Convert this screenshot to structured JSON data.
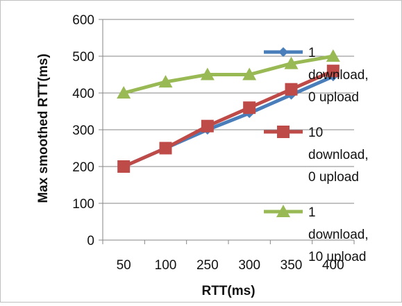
{
  "chart_data": {
    "type": "line",
    "title": "",
    "xlabel": "RTT(ms)",
    "ylabel": "Max smoothed RTT(ms)",
    "categories": [
      "50",
      "100",
      "250",
      "300",
      "350",
      "400"
    ],
    "ylim": [
      0,
      600
    ],
    "yticks": [
      "0",
      "100",
      "200",
      "300",
      "400",
      "500",
      "600"
    ],
    "grid": "horizontal",
    "legend_position": "right",
    "series": [
      {
        "name": "1 download, 0 upload",
        "legend_lines": [
          "1",
          "download,",
          "0 upload"
        ],
        "values": [
          200,
          250,
          300,
          345,
          395,
          445
        ],
        "color": "#4A7EBB",
        "marker": "diamond"
      },
      {
        "name": "10 download, 0 upload",
        "legend_lines": [
          "10",
          "download,",
          "0 upload"
        ],
        "values": [
          200,
          250,
          310,
          360,
          410,
          460
        ],
        "color": "#BE4B48",
        "marker": "square"
      },
      {
        "name": "1 download, 10 upload",
        "legend_lines": [
          "1",
          "download,",
          "10 upload"
        ],
        "values": [
          400,
          430,
          450,
          450,
          480,
          500
        ],
        "color": "#98B954",
        "marker": "triangle"
      }
    ]
  }
}
